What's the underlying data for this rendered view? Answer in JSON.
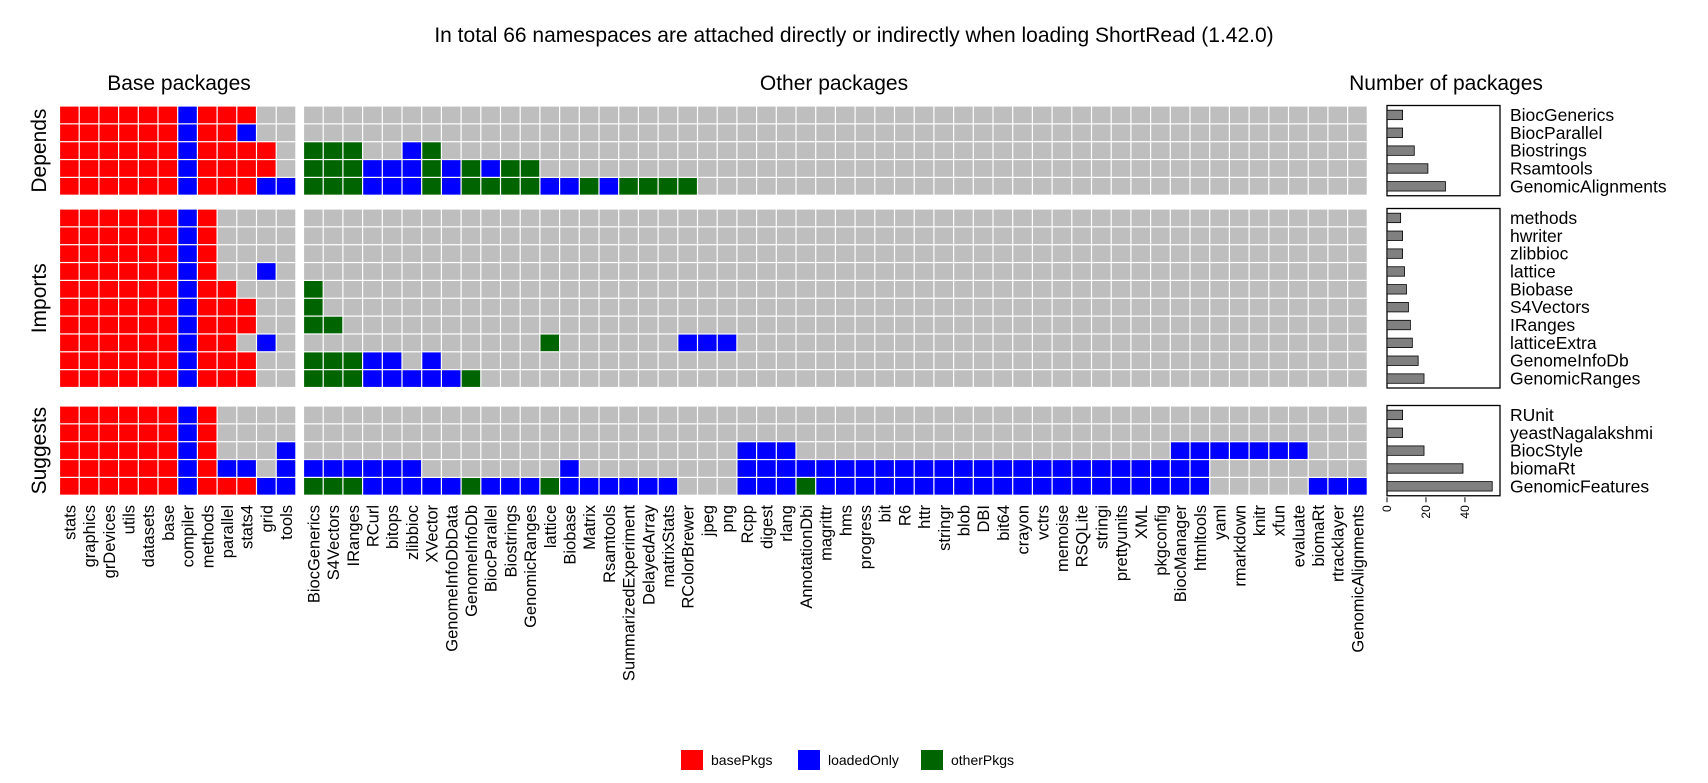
{
  "chart_data": {
    "type": "heatmap",
    "title": "In total 66 namespaces are attached directly or indirectly when loading ShortRead (1.42.0)",
    "panels": {
      "base": "Base packages",
      "other": "Other packages",
      "count": "Number of packages"
    },
    "groups": [
      {
        "name": "Depends",
        "rows": [
          "BiocGenerics",
          "BiocParallel",
          "Biostrings",
          "Rsamtools",
          "GenomicAlignments"
        ]
      },
      {
        "name": "Imports",
        "rows": [
          "methods",
          "hwriter",
          "zlibbioc",
          "lattice",
          "Biobase",
          "S4Vectors",
          "IRanges",
          "latticeExtra",
          "GenomeInfoDb",
          "GenomicRanges"
        ]
      },
      {
        "name": "Suggests",
        "rows": [
          "RUnit",
          "yeastNagalakshmi",
          "BiocStyle",
          "biomaRt",
          "GenomicFeatures"
        ]
      }
    ],
    "base_columns": [
      "stats",
      "graphics",
      "grDevices",
      "utils",
      "datasets",
      "base",
      "compiler",
      "methods",
      "parallel",
      "stats4",
      "grid",
      "tools"
    ],
    "other_columns": [
      "BiocGenerics",
      "S4Vectors",
      "IRanges",
      "RCurl",
      "bitops",
      "zlibbioc",
      "XVector",
      "GenomeInfoDbData",
      "GenomeInfoDb",
      "BiocParallel",
      "Biostrings",
      "GenomicRanges",
      "lattice",
      "Biobase",
      "Matrix",
      "Rsamtools",
      "SummarizedExperiment",
      "DelayedArray",
      "matrixStats",
      "RColorBrewer",
      "jpeg",
      "png",
      "Rcpp",
      "digest",
      "rlang",
      "AnnotationDbi",
      "magrittr",
      "hms",
      "progress",
      "bit",
      "R6",
      "httr",
      "stringr",
      "blob",
      "DBI",
      "bit64",
      "crayon",
      "vctrs",
      "memoise",
      "RSQLite",
      "stringi",
      "prettyunits",
      "XML",
      "pkgconfig",
      "BiocManager",
      "htmltools",
      "yaml",
      "rmarkdown",
      "knitr",
      "xfun",
      "evaluate",
      "biomaRt",
      "rtracklayer",
      "GenomicAlignments"
    ],
    "cell_codes": {
      "0": "none",
      "1": "basePkgs",
      "2": "loadedOnly",
      "3": "otherPkgs"
    },
    "base_matrix": [
      "111111211100",
      "111111211200",
      "111111211110",
      "111111211110",
      "111111211122",
      "111111210000",
      "111111210000",
      "111111210000",
      "111111210020",
      "111111211000",
      "111111211100",
      "111111211100",
      "111111211020",
      "111111211100",
      "111111211100",
      "111111210000",
      "111111210000",
      "111111210002",
      "111111212202",
      "111111211122"
    ],
    "other_matrix": [
      "000000000000000000000000000000000000000000000000000000",
      "000000000000000000000000000000000000000000000000000000",
      "333002300000000000000000000000000000000000000000000000",
      "333222323233000000000000000000000000000000000000000000",
      "333222323333223233330000000000000000000000000000000000",
      "000000000000000000000000000000000000000000000000000000",
      "000000000000000000000000000000000000000000000000000000",
      "000000000000000000000000000000000000000000000000000000",
      "000000000000000000000000000000000000000000000000000000",
      "300000000000000000000000000000000000000000000000000000",
      "300000000000000000000000000000000000000000000000000000",
      "330000000000000000000000000000000000000000000000000000",
      "000000000000300000022200000000000000000000000000000000",
      "333220200000000000000000000000000000000000000000000000",
      "333222223000000000000000000000000000000000000000000000",
      "000000000000000000000000000000000000000000000000000000",
      "000000000000000000000000000000000000000000000000000000",
      "000000000000000000000022200000000000000000002222222000",
      "222222000000020000000022222222222222222222222200000000",
      "333222223222322222200022232222222222222222222200000222"
    ],
    "counts": [
      8,
      8,
      14,
      21,
      30,
      7,
      8,
      8,
      9,
      10,
      11,
      12,
      13,
      16,
      19,
      8,
      8,
      19,
      39,
      54
    ],
    "count_axis": {
      "ticks": [
        0,
        20,
        40
      ],
      "max": 58
    },
    "legend": [
      {
        "code": "1",
        "label": "basePkgs",
        "color": "#ff0000"
      },
      {
        "code": "2",
        "label": "loadedOnly",
        "color": "#0000ff"
      },
      {
        "code": "3",
        "label": "otherPkgs",
        "color": "#006400"
      }
    ],
    "colors": {
      "none": "#bebebe",
      "bar": "#808080"
    }
  }
}
